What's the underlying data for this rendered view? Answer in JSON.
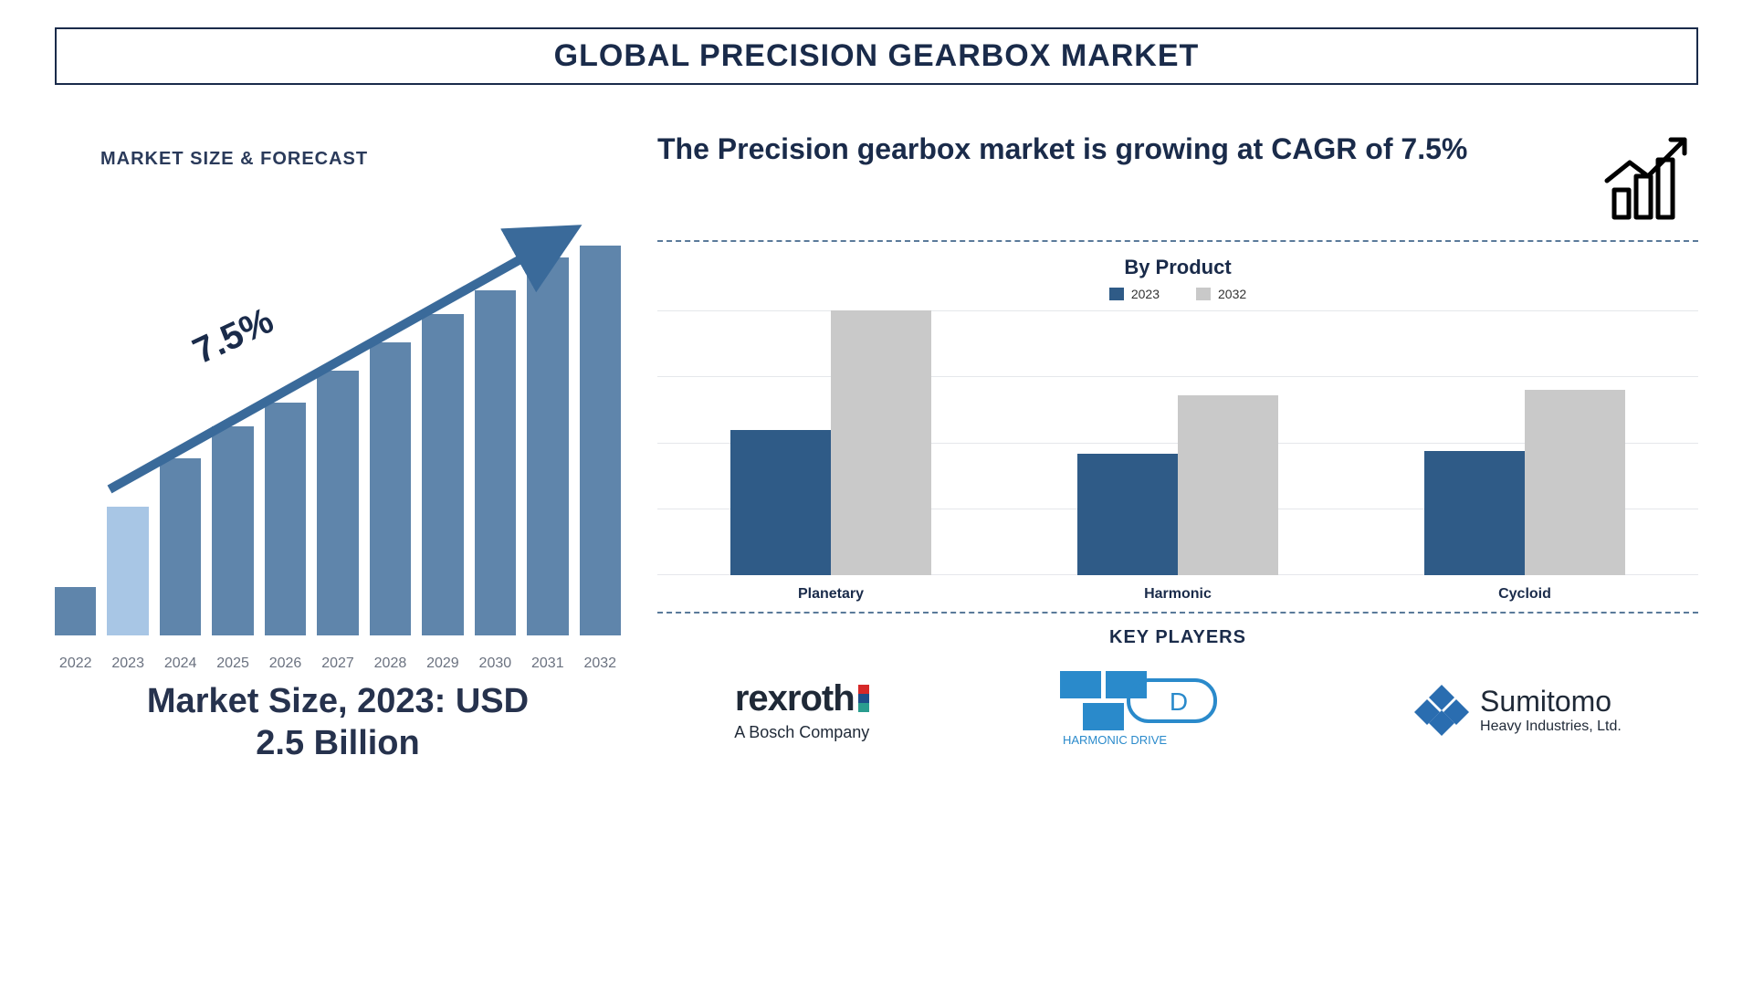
{
  "title": "GLOBAL PRECISION GEARBOX MARKET",
  "forecast": {
    "heading": "MARKET SIZE & FORECAST",
    "cagr_label": "7.5%",
    "years": [
      "2022",
      "2023",
      "2024",
      "2025",
      "2026",
      "2027",
      "2028",
      "2029",
      "2030",
      "2031",
      "2032"
    ],
    "bar_heights_pct": [
      12,
      32,
      44,
      52,
      58,
      66,
      73,
      80,
      86,
      94,
      97
    ],
    "bar_colors": [
      "#5f85ab",
      "#a8c6e5",
      "#5f85ab",
      "#5f85ab",
      "#5f85ab",
      "#5f85ab",
      "#5f85ab",
      "#5f85ab",
      "#5f85ab",
      "#5f85ab",
      "#5f85ab"
    ],
    "arrow_color": "#3a6a9a",
    "market_size_line1": "Market Size, 2023: USD",
    "market_size_line2": "2.5 Billion"
  },
  "headline": "The Precision gearbox market is growing at CAGR of 7.5%",
  "product_chart": {
    "title": "By Product",
    "legend": {
      "a_label": "2023",
      "a_color": "#2f5b87",
      "b_label": "2032",
      "b_color": "#c9c9c9"
    },
    "categories": [
      "Planetary",
      "Harmonic",
      "Cycloid"
    ],
    "series_2023_pct": [
      55,
      46,
      47
    ],
    "series_2032_pct": [
      100,
      68,
      70
    ],
    "grid_color": "#e5e7eb",
    "grid_count": 5
  },
  "key_players": {
    "title": "KEY PLAYERS",
    "p1_name": "rexroth",
    "p1_sub": "A Bosch Company",
    "p2_name": "HARMONIC DRIVE",
    "p3_name": "Sumitomo",
    "p3_sub": "Heavy Industries, Ltd."
  },
  "divider_color": "#5a7a9a"
}
